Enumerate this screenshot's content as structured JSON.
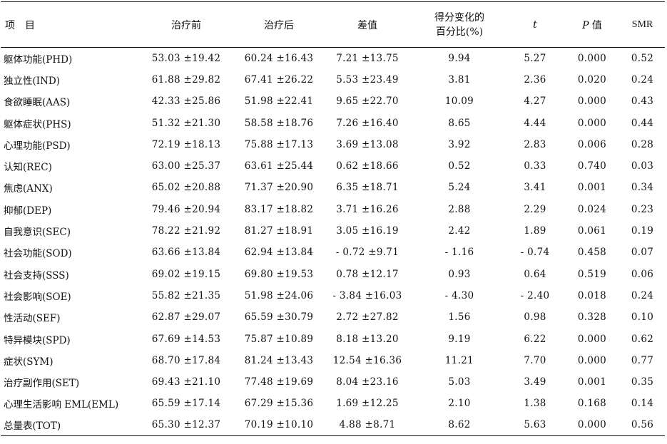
{
  "header": {
    "item": "项　目",
    "before": "治疗前",
    "after": "治疗后",
    "diff": "差值",
    "pct_line1": "得分变化的",
    "pct_line2": "百分比(%)",
    "t": "t",
    "p_italic": "P",
    "p_suffix": " 值",
    "smr": "SMR"
  },
  "rows": [
    {
      "item": "躯体功能(PHD)",
      "before": "53.03 ±19.42",
      "after": "60.24 ±16.43",
      "diff": "7.21 ±13.75",
      "pct": "9.94",
      "t": "5.27",
      "p": "0.000",
      "smr": "0.52"
    },
    {
      "item": "独立性(IND)",
      "before": "61.88 ±29.82",
      "after": "67.41 ±26.22",
      "diff": "5.53 ±23.49",
      "pct": "3.81",
      "t": "2.36",
      "p": "0.020",
      "smr": "0.24"
    },
    {
      "item": "食欲睡眠(AAS)",
      "before": "42.33 ±25.86",
      "after": "51.98 ±22.41",
      "diff": "9.65 ±22.70",
      "pct": "10.09",
      "t": "4.27",
      "p": "0.000",
      "smr": "0.43"
    },
    {
      "item": "躯体症状(PHS)",
      "before": "51.32 ±21.30",
      "after": "58.58 ±18.76",
      "diff": "7.26 ±16.40",
      "pct": "8.65",
      "t": "4.44",
      "p": "0.000",
      "smr": "0.44"
    },
    {
      "item": "心理功能(PSD)",
      "before": "72.19 ±18.13",
      "after": "75.88 ±17.13",
      "diff": "3.69 ±13.08",
      "pct": "3.92",
      "t": "2.83",
      "p": "0.006",
      "smr": "0.28"
    },
    {
      "item": "认知(REC)",
      "before": "63.00 ±25.37",
      "after": "63.61 ±25.44",
      "diff": "0.62 ±18.66",
      "pct": "0.52",
      "t": "0.33",
      "p": "0.740",
      "smr": "0.03"
    },
    {
      "item": "焦虑(ANX)",
      "before": "65.02 ±20.88",
      "after": "71.37 ±20.90",
      "diff": "6.35 ±18.71",
      "pct": "5.24",
      "t": "3.41",
      "p": "0.001",
      "smr": "0.34"
    },
    {
      "item": "抑郁(DEP)",
      "before": "79.46 ±20.94",
      "after": "83.17 ±18.82",
      "diff": "3.71 ±16.26",
      "pct": "2.88",
      "t": "2.29",
      "p": "0.024",
      "smr": "0.23"
    },
    {
      "item": "自我意识(SEC)",
      "before": "78.22 ±21.92",
      "after": "81.27 ±18.91",
      "diff": "3.05 ±16.19",
      "pct": "2.42",
      "t": "1.89",
      "p": "0.061",
      "smr": "0.19"
    },
    {
      "item": "社会功能(SOD)",
      "before": "63.66 ±13.84",
      "after": "62.94 ±13.84",
      "diff": "- 0.72 ±9.71",
      "pct": "- 1.16",
      "t": "- 0.74",
      "p": "0.458",
      "smr": "0.07"
    },
    {
      "item": "社会支持(SSS)",
      "before": "69.02 ±19.15",
      "after": "69.80 ±19.53",
      "diff": "0.78 ±12.17",
      "pct": "0.93",
      "t": "0.64",
      "p": "0.519",
      "smr": "0.06"
    },
    {
      "item": "社会影响(SOE)",
      "before": "55.82 ±21.35",
      "after": "51.98 ±24.06",
      "diff": "- 3.84 ±16.03",
      "pct": "- 4.30",
      "t": "- 2.40",
      "p": "0.018",
      "smr": "0.24"
    },
    {
      "item": "性活动(SEF)",
      "before": "62.87 ±29.07",
      "after": "65.59 ±30.79",
      "diff": "2.72 ±27.82",
      "pct": "1.56",
      "t": "0.98",
      "p": "0.328",
      "smr": "0.10"
    },
    {
      "item": "特异模块(SPD)",
      "before": "67.69 ±14.53",
      "after": "75.87 ±10.89",
      "diff": "8.18 ±13.20",
      "pct": "9.19",
      "t": "6.22",
      "p": "0.000",
      "smr": "0.62"
    },
    {
      "item": "症状(SYM)",
      "before": "68.70 ±17.84",
      "after": "81.24 ±13.43",
      "diff": "12.54 ±16.36",
      "pct": "11.21",
      "t": "7.70",
      "p": "0.000",
      "smr": "0.77"
    },
    {
      "item": "治疗副作用(SET)",
      "before": "69.43 ±21.10",
      "after": "77.48 ±19.69",
      "diff": "8.04 ±23.16",
      "pct": "5.03",
      "t": "3.49",
      "p": "0.001",
      "smr": "0.35"
    },
    {
      "item": "心理生活影响 EML(EML)",
      "before": "65.59 ±17.14",
      "after": "67.29 ±15.36",
      "diff": "1.69 ±12.25",
      "pct": "2.10",
      "t": "1.38",
      "p": "0.168",
      "smr": "0.14"
    },
    {
      "item": "总量表(TOT)",
      "before": "65.30 ±12.37",
      "after": "70.19 ±10.10",
      "diff": "4.88 ±8.71",
      "pct": "8.62",
      "t": "5.63",
      "p": "0.000",
      "smr": "0.56"
    }
  ]
}
